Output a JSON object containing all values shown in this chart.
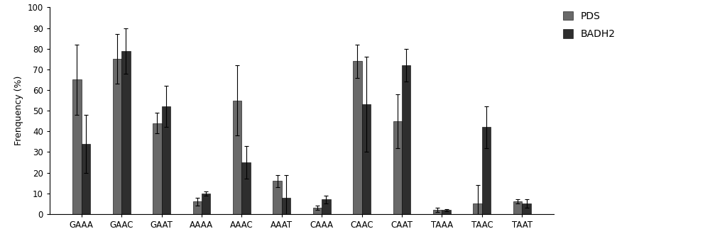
{
  "categories": [
    "GAAA",
    "GAAC",
    "GAAT",
    "AAAA",
    "AAAC",
    "AAAT",
    "CAAA",
    "CAAC",
    "CAAT",
    "TAAA",
    "TAAC",
    "TAAT"
  ],
  "pds_values": [
    65,
    75,
    44,
    6,
    55,
    16,
    3,
    74,
    45,
    2,
    5,
    6
  ],
  "badh2_values": [
    34,
    79,
    52,
    10,
    25,
    8,
    7,
    53,
    72,
    2,
    42,
    5
  ],
  "pds_errors": [
    17,
    12,
    5,
    2,
    17,
    3,
    1,
    8,
    13,
    1,
    9,
    1
  ],
  "badh2_errors": [
    14,
    11,
    10,
    1,
    8,
    11,
    2,
    23,
    8,
    0.5,
    10,
    2
  ],
  "pds_color": "#696969",
  "badh2_color": "#2e2e2e",
  "ylabel": "Frenquency (%)",
  "ylim": [
    0,
    100
  ],
  "yticks": [
    0,
    10,
    20,
    30,
    40,
    50,
    60,
    70,
    80,
    90,
    100
  ],
  "bar_width": 0.22,
  "legend_labels": [
    "PDS",
    "BADH2"
  ],
  "background_color": "#ffffff",
  "font_size": 9,
  "tick_font_size": 8.5
}
